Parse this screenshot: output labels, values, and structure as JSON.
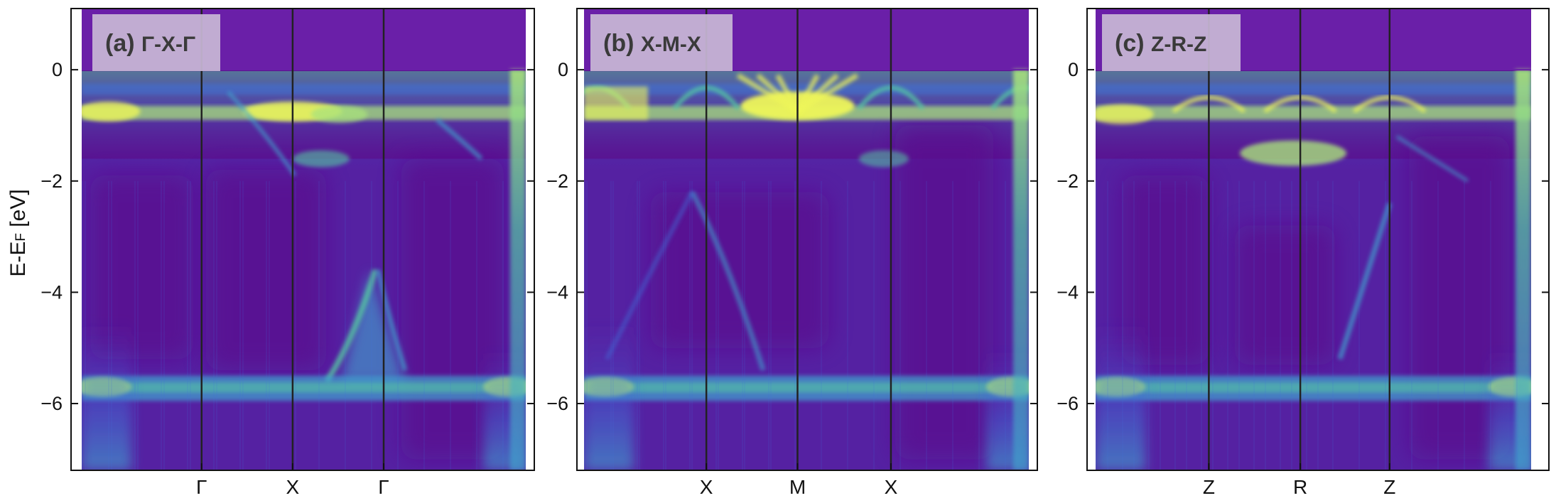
{
  "colors": {
    "colormap": [
      "#5a0f8e",
      "#6a1fa8",
      "#4c46c8",
      "#3e73db",
      "#3fa6cf",
      "#55c9a2",
      "#a9e27b",
      "#eef65a"
    ],
    "divider": "#222222",
    "label_box": "#c9b9d6",
    "label_text": "#3a3a3a",
    "axis": "#111111"
  },
  "ylabel": {
    "main": "E-E",
    "sub": "F",
    "rest": " [eV]"
  },
  "chart_data": [
    {
      "type": "heatmap",
      "label_prefix": "(a)",
      "label_path": "Γ-X-Γ",
      "ylim": [
        -7.2,
        1.1
      ],
      "yticks": [
        0,
        -2,
        -4,
        -6
      ],
      "ytick_labels": [
        "0",
        "−2",
        "−4",
        "−6"
      ],
      "kpoint_labels": [
        "Γ",
        "X",
        "Γ"
      ],
      "kpoint_positions": [
        0.27,
        0.475,
        0.68
      ]
    },
    {
      "type": "heatmap",
      "label_prefix": "(b)",
      "label_path": "X-M-X",
      "ylim": [
        -7.2,
        1.1
      ],
      "yticks": [
        0,
        -2,
        -4,
        -6
      ],
      "ytick_labels": [
        "0",
        "−2",
        "−4",
        "−6"
      ],
      "kpoint_labels": [
        "X",
        "M",
        "X"
      ],
      "kpoint_positions": [
        0.275,
        0.48,
        0.69
      ]
    },
    {
      "type": "heatmap",
      "label_prefix": "(c)",
      "label_path": "Z-R-Z",
      "ylim": [
        -7.2,
        1.1
      ],
      "yticks": [
        0,
        -2,
        -4,
        -6
      ],
      "ytick_labels": [
        "0",
        "−2",
        "−4",
        "−6"
      ],
      "kpoint_labels": [
        "Z",
        "R",
        "Z"
      ],
      "kpoint_positions": [
        0.26,
        0.47,
        0.675
      ]
    }
  ]
}
